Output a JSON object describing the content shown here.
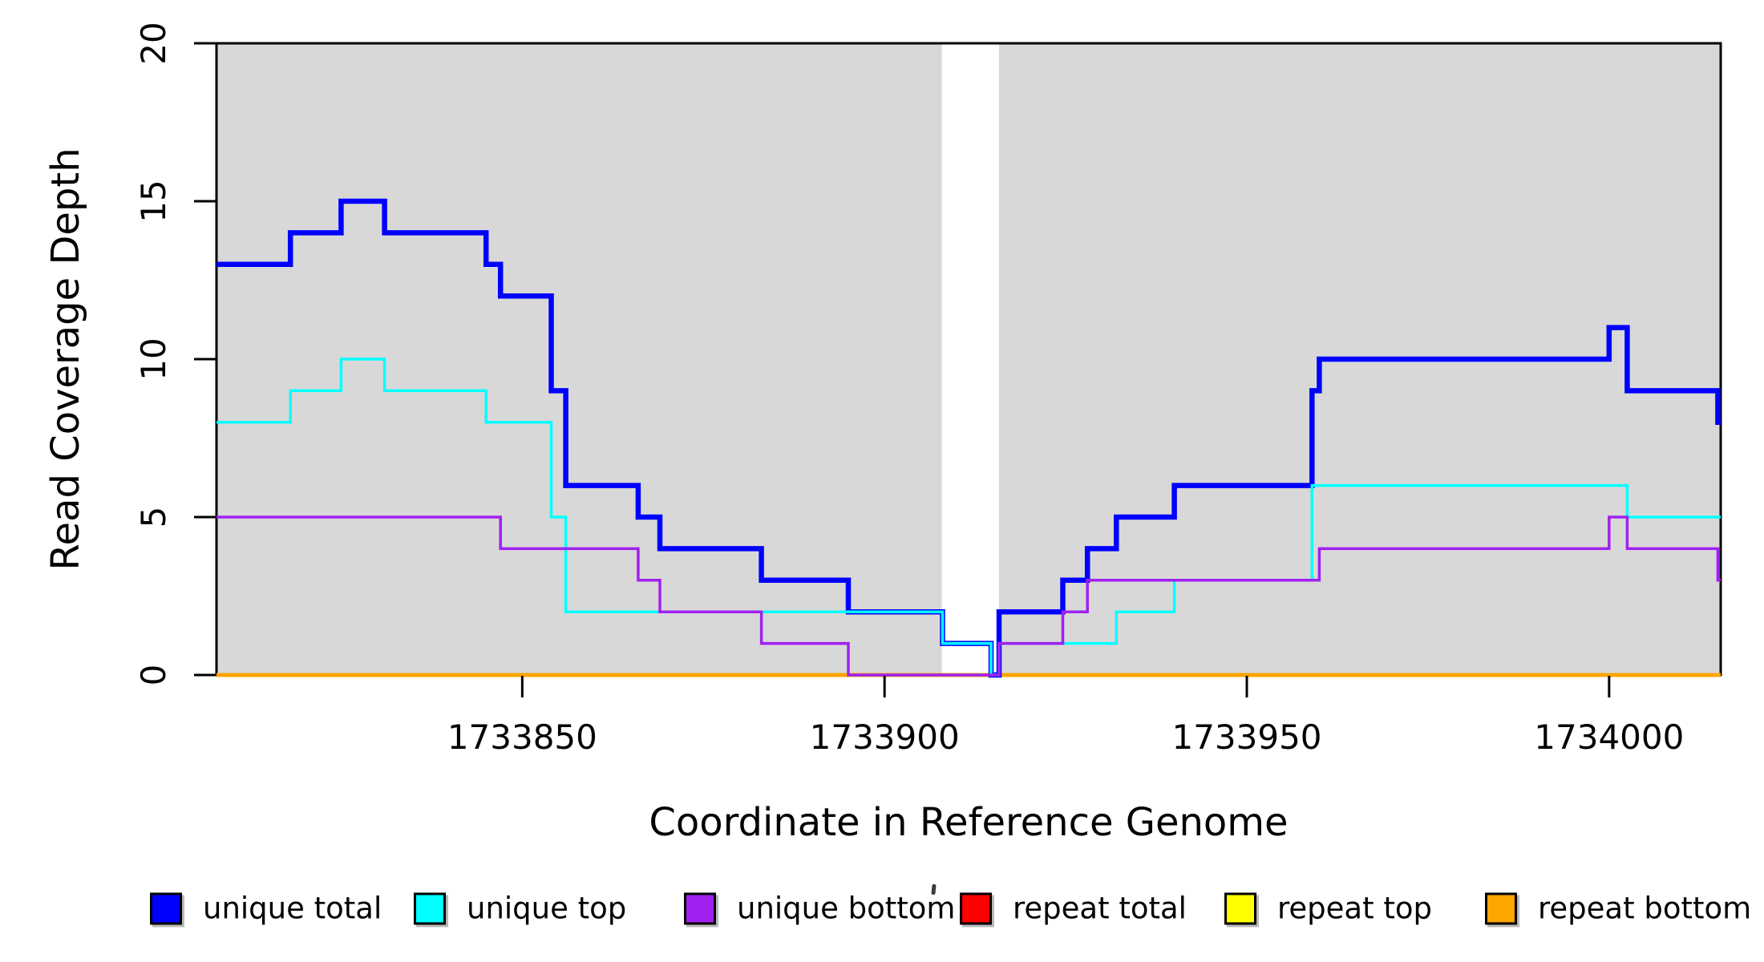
{
  "figure": {
    "x_axis": {
      "label": "Coordinate in Reference Genome",
      "ticks": [
        1733850,
        1733900,
        1733950,
        1734000
      ],
      "range": [
        1733807.8,
        1734015.4
      ]
    },
    "y_axis": {
      "label": "Read Coverage Depth",
      "ticks": [
        0,
        5,
        10,
        15,
        20
      ],
      "range": [
        0,
        20
      ]
    },
    "legend": [
      {
        "label": "unique total",
        "color": "#0000FF"
      },
      {
        "label": "unique top",
        "color": "#00FFFF"
      },
      {
        "label": "unique bottom",
        "color": "#A020F0"
      },
      {
        "label": "repeat total",
        "color": "#FF0000"
      },
      {
        "label": "repeat top",
        "color": "#FFFF00"
      },
      {
        "label": "repeat bottom",
        "color": "#FFA500"
      }
    ],
    "stray_mark": true
  },
  "chart_data": {
    "type": "line",
    "subtype": "step-after-coverage",
    "title": "",
    "xlabel": "Coordinate in Reference Genome",
    "ylabel": "Read Coverage Depth",
    "xlim": [
      1733807.8,
      1734015.4
    ],
    "ylim": [
      0,
      20
    ],
    "grid": false,
    "legend_position": "bottom",
    "panel_color": "#D8D8D8",
    "covered_regions": [
      [
        1733807.8,
        1733907.9
      ],
      [
        1733915.8,
        1734015.4
      ]
    ],
    "uncovered_gap": [
      1733907.9,
      1733915.8
    ],
    "draw_order": [
      "repeat total",
      "repeat top",
      "repeat bottom",
      "unique total",
      "unique top",
      "unique bottom"
    ],
    "series": [
      {
        "name": "unique total",
        "color": "#0000FF",
        "stroke_width": 6.5,
        "start_value": 13,
        "steps": [
          [
            1733818,
            14
          ],
          [
            1733825,
            15
          ],
          [
            1733831,
            14
          ],
          [
            1733845,
            13
          ],
          [
            1733847,
            12
          ],
          [
            1733854,
            9
          ],
          [
            1733856,
            6
          ],
          [
            1733866,
            5
          ],
          [
            1733869,
            4
          ],
          [
            1733883,
            3
          ],
          [
            1733895,
            2
          ],
          [
            1733908,
            1
          ],
          [
            1733914.7,
            0
          ],
          [
            1733915.8,
            2
          ],
          [
            1733924.6,
            3
          ],
          [
            1733928,
            4
          ],
          [
            1733932,
            5
          ],
          [
            1733940,
            6
          ],
          [
            1733959,
            9
          ],
          [
            1733960,
            10
          ],
          [
            1734000,
            11
          ],
          [
            1734002.5,
            9
          ],
          [
            1734015,
            8
          ]
        ]
      },
      {
        "name": "unique top",
        "color": "#00FFFF",
        "stroke_width": 3.5,
        "start_value": 8,
        "steps": [
          [
            1733818,
            9
          ],
          [
            1733825,
            10
          ],
          [
            1733831,
            9
          ],
          [
            1733845,
            8
          ],
          [
            1733854,
            5
          ],
          [
            1733856,
            2
          ],
          [
            1733908,
            1
          ],
          [
            1733914.7,
            0
          ],
          [
            1733915.8,
            1
          ],
          [
            1733932,
            2
          ],
          [
            1733940,
            3
          ],
          [
            1733959,
            6
          ],
          [
            1734002.5,
            5
          ]
        ]
      },
      {
        "name": "unique bottom",
        "color": "#A020F0",
        "stroke_width": 3.5,
        "start_value": 5,
        "steps": [
          [
            1733847,
            4
          ],
          [
            1733866,
            3
          ],
          [
            1733869,
            2
          ],
          [
            1733883,
            1
          ],
          [
            1733895,
            0
          ],
          [
            1733915.8,
            1
          ],
          [
            1733924.6,
            2
          ],
          [
            1733928,
            3
          ],
          [
            1733960,
            4
          ],
          [
            1734000,
            5
          ],
          [
            1734002.5,
            4
          ],
          [
            1734015,
            3
          ]
        ]
      },
      {
        "name": "repeat total",
        "color": "#FF0000",
        "stroke_width": 4,
        "start_value": 0,
        "steps": []
      },
      {
        "name": "repeat top",
        "color": "#FFFF00",
        "stroke_width": 4,
        "start_value": 0,
        "steps": []
      },
      {
        "name": "repeat bottom",
        "color": "#FFA500",
        "stroke_width": 5,
        "start_value": 0,
        "steps": []
      }
    ]
  }
}
